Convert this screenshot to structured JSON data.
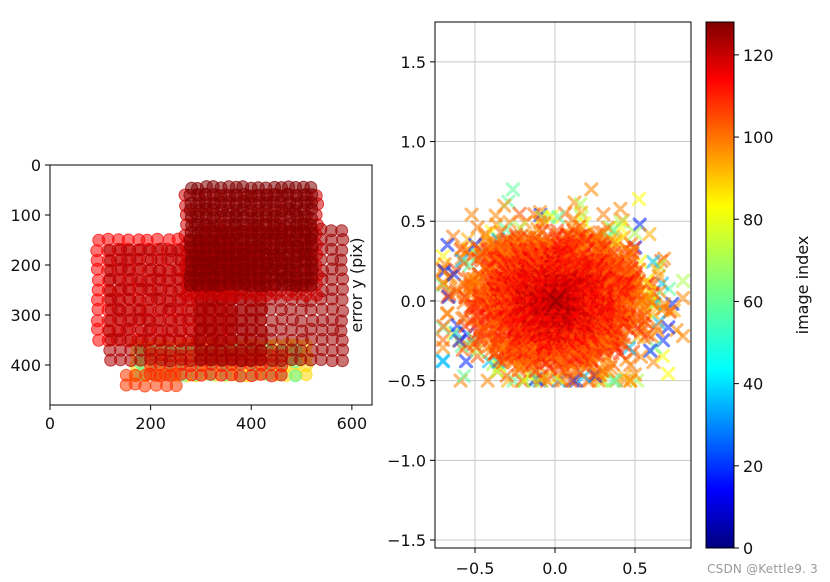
{
  "chart_data": [
    {
      "type": "scatter",
      "title": "",
      "xlabel": "",
      "ylabel": "",
      "xlim": [
        0,
        640
      ],
      "ylim": [
        480,
        0
      ],
      "x_ticks": [
        0,
        200,
        400,
        600
      ],
      "y_ticks": [
        0,
        100,
        200,
        300,
        400
      ],
      "x_tick_labels": [
        "0",
        "200",
        "400",
        "600"
      ],
      "y_tick_labels": [
        "0",
        "100",
        "200",
        "300",
        "400"
      ],
      "marker": "circle",
      "grid": false,
      "color_by": "image index",
      "point_groups": [
        {
          "image_index": 85,
          "x_range": [
            170,
            520
          ],
          "y_range": [
            360,
            420
          ],
          "x_step": 20,
          "y_step": 20
        },
        {
          "image_index": 60,
          "x_range": [
            180,
            500
          ],
          "y_range": [
            370,
            440
          ],
          "x_step": 28,
          "y_step": 25
        },
        {
          "image_index": 110,
          "x_range": [
            200,
            470
          ],
          "y_range": [
            380,
            420
          ],
          "x_step": 20,
          "y_step": 20
        },
        {
          "image_index": 105,
          "x_range": [
            150,
            250
          ],
          "y_range": [
            420,
            455
          ],
          "x_step": 20,
          "y_step": 20
        },
        {
          "image_index": 112,
          "x_range": [
            95,
            360
          ],
          "y_range": [
            150,
            350
          ],
          "x_step": 20,
          "y_step": 20
        },
        {
          "image_index": 122,
          "x_range": [
            120,
            420
          ],
          "y_range": [
            170,
            390
          ],
          "x_step": 20,
          "y_step": 20
        },
        {
          "image_index": 124,
          "x_range": [
            300,
            580
          ],
          "y_range": [
            130,
            390
          ],
          "x_step": 20,
          "y_step": 20
        },
        {
          "image_index": 118,
          "x_range": [
            270,
            540
          ],
          "y_range": [
            60,
            260
          ],
          "x_step": 20,
          "y_step": 20
        },
        {
          "image_index": 128,
          "x_range": [
            280,
            520
          ],
          "y_range": [
            45,
            240
          ],
          "x_step": 15,
          "y_step": 15
        }
      ]
    },
    {
      "type": "scatter",
      "title": "",
      "xlabel": "",
      "ylabel": "error y (pix)",
      "xlim": [
        -0.75,
        0.85
      ],
      "ylim": [
        -1.55,
        1.75
      ],
      "x_ticks": [
        -0.5,
        0.0,
        0.5
      ],
      "y_ticks": [
        -1.5,
        -1.0,
        -0.5,
        0.0,
        0.5,
        1.0,
        1.5
      ],
      "x_tick_labels": [
        "−0.5",
        "0.0",
        "0.5"
      ],
      "y_tick_labels": [
        "−1.5",
        "−1.0",
        "−0.5",
        "0.0",
        "0.5",
        "1.0",
        "1.5"
      ],
      "marker": "x",
      "grid": true,
      "color_by": "image index",
      "point_cloud": {
        "n_points": 2600,
        "center": [
          0.0,
          0.0
        ],
        "std": [
          0.26,
          0.22
        ],
        "x_range": [
          -0.7,
          0.8
        ],
        "y_range": [
          -0.5,
          0.7
        ],
        "dense_core_index": 128,
        "outer_ring_indices": [
          20,
          40,
          60,
          70,
          80,
          90
        ]
      }
    }
  ],
  "colorbar": {
    "label": "image index",
    "min": 0,
    "max": 128,
    "ticks": [
      0,
      20,
      40,
      60,
      80,
      100,
      120
    ],
    "tick_labels": [
      "0",
      "20",
      "40",
      "60",
      "80",
      "100",
      "120"
    ],
    "colormap": "jet"
  },
  "watermark": "CSDN @Kettle9. 3"
}
